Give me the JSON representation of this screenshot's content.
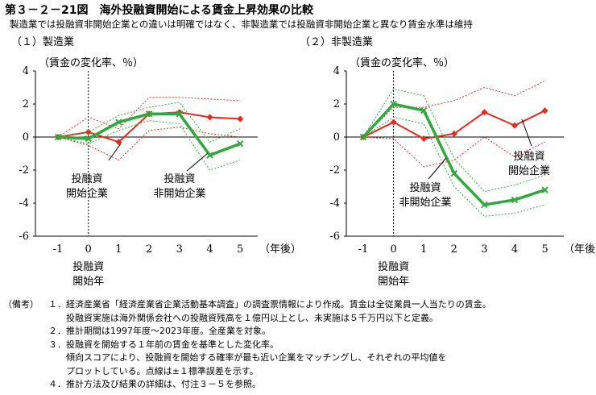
{
  "header": {
    "title": "第３－２－21図　海外投融資開始による賃金上昇効果の比較",
    "subtitle": "製造業では投融資非開始企業との違いは明確ではなく、非製造業では投融資非開始企業と異なり賃金水準は維持"
  },
  "colors": {
    "start": "#e8291c",
    "nonstart": "#2eaa3c",
    "axis": "#000000"
  },
  "chart_data": [
    {
      "type": "line",
      "panel_title": "（１）製造業",
      "ylabel": "（賃金の変化率、％）",
      "xlabel": "（年後）",
      "x": [
        -1,
        0,
        1,
        2,
        3,
        4,
        5
      ],
      "x_tick_labels": [
        "-1",
        "0",
        "1",
        "2",
        "3",
        "4",
        "5"
      ],
      "y_ticks": [
        4,
        2,
        0,
        -2,
        -4,
        -6
      ],
      "ylim": [
        -6,
        4
      ],
      "xlim": [
        -2,
        5.5
      ],
      "event_x": 0,
      "event_label": [
        "投融資",
        "開始年"
      ],
      "series": [
        {
          "name": "投融資開始企業",
          "label_lines": [
            "投融資",
            "開始企業"
          ],
          "color": "#e8291c",
          "values": [
            0.0,
            0.3,
            -0.3,
            1.4,
            1.5,
            1.2,
            1.1
          ],
          "upper": [
            0.0,
            1.2,
            0.5,
            2.4,
            2.4,
            2.3,
            2.2
          ],
          "lower": [
            0.0,
            -0.5,
            -1.4,
            0.4,
            0.6,
            0.2,
            0.0
          ]
        },
        {
          "name": "投融資非開始企業",
          "label_lines": [
            "投融資",
            "非開始企業"
          ],
          "color": "#2eaa3c",
          "values": [
            0.0,
            -0.1,
            0.9,
            1.4,
            1.4,
            -1.1,
            -0.4
          ],
          "upper": [
            0.0,
            0.3,
            1.3,
            1.8,
            2.1,
            -0.3,
            0.5
          ],
          "lower": [
            0.0,
            -0.4,
            0.4,
            1.0,
            0.8,
            -2.0,
            -1.4
          ]
        }
      ]
    },
    {
      "type": "line",
      "panel_title": "（２）非製造業",
      "ylabel": "（賃金の変化率、％）",
      "xlabel": "（年後）",
      "x": [
        -1,
        0,
        1,
        2,
        3,
        4,
        5
      ],
      "x_tick_labels": [
        "-1",
        "0",
        "1",
        "2",
        "3",
        "4",
        "5"
      ],
      "y_ticks": [
        4,
        2,
        0,
        -2,
        -4,
        -6
      ],
      "ylim": [
        -6,
        4
      ],
      "xlim": [
        -2,
        5.5
      ],
      "event_x": 0,
      "event_label": [
        "投融資",
        "開始年"
      ],
      "series": [
        {
          "name": "投融資開始企業",
          "label_lines": [
            "投融資",
            "開始企業"
          ],
          "color": "#e8291c",
          "values": [
            0.0,
            0.9,
            -0.1,
            0.2,
            1.5,
            0.7,
            1.6
          ],
          "upper": [
            0.0,
            1.8,
            1.8,
            2.2,
            3.0,
            2.5,
            3.4
          ],
          "lower": [
            0.0,
            -0.1,
            -1.8,
            -1.4,
            0.0,
            -1.2,
            -0.3
          ]
        },
        {
          "name": "投融資非開始企業",
          "label_lines": [
            "投融資",
            "非開始企業"
          ],
          "color": "#2eaa3c",
          "values": [
            0.0,
            2.0,
            1.6,
            -2.2,
            -4.1,
            -3.8,
            -3.2
          ],
          "upper": [
            0.0,
            2.9,
            2.5,
            -1.3,
            -3.3,
            -2.9,
            -2.3
          ],
          "lower": [
            0.0,
            1.2,
            0.8,
            -3.0,
            -4.8,
            -4.6,
            -4.1
          ]
        }
      ]
    }
  ],
  "notes": {
    "prefix": "（備考）",
    "items": [
      {
        "num": "１．",
        "lines": [
          "経済産業省「経済産業省企業活動基本調査」の調査票情報により作成。賃金は全従業員一人当たりの賃金。",
          "投融資実施は海外関係会社への投融資残高を１億円以上とし、未実施は５千万円以下と定義。"
        ]
      },
      {
        "num": "２．",
        "lines": [
          "推計期間は1997年度～2023年度。全産業を対象。"
        ]
      },
      {
        "num": "３．",
        "lines": [
          "投融資を開始する１年前の賃金を基準とした変化率。",
          "傾向スコアにより、投融資を開始する確率が最も近い企業をマッチングし、それぞれの平均値を",
          "プロットしている。点線は±１標準誤差を示す。"
        ]
      },
      {
        "num": "４．",
        "lines": [
          "推計方法及び結果の詳細は、付注３－５を参照。"
        ]
      }
    ]
  }
}
